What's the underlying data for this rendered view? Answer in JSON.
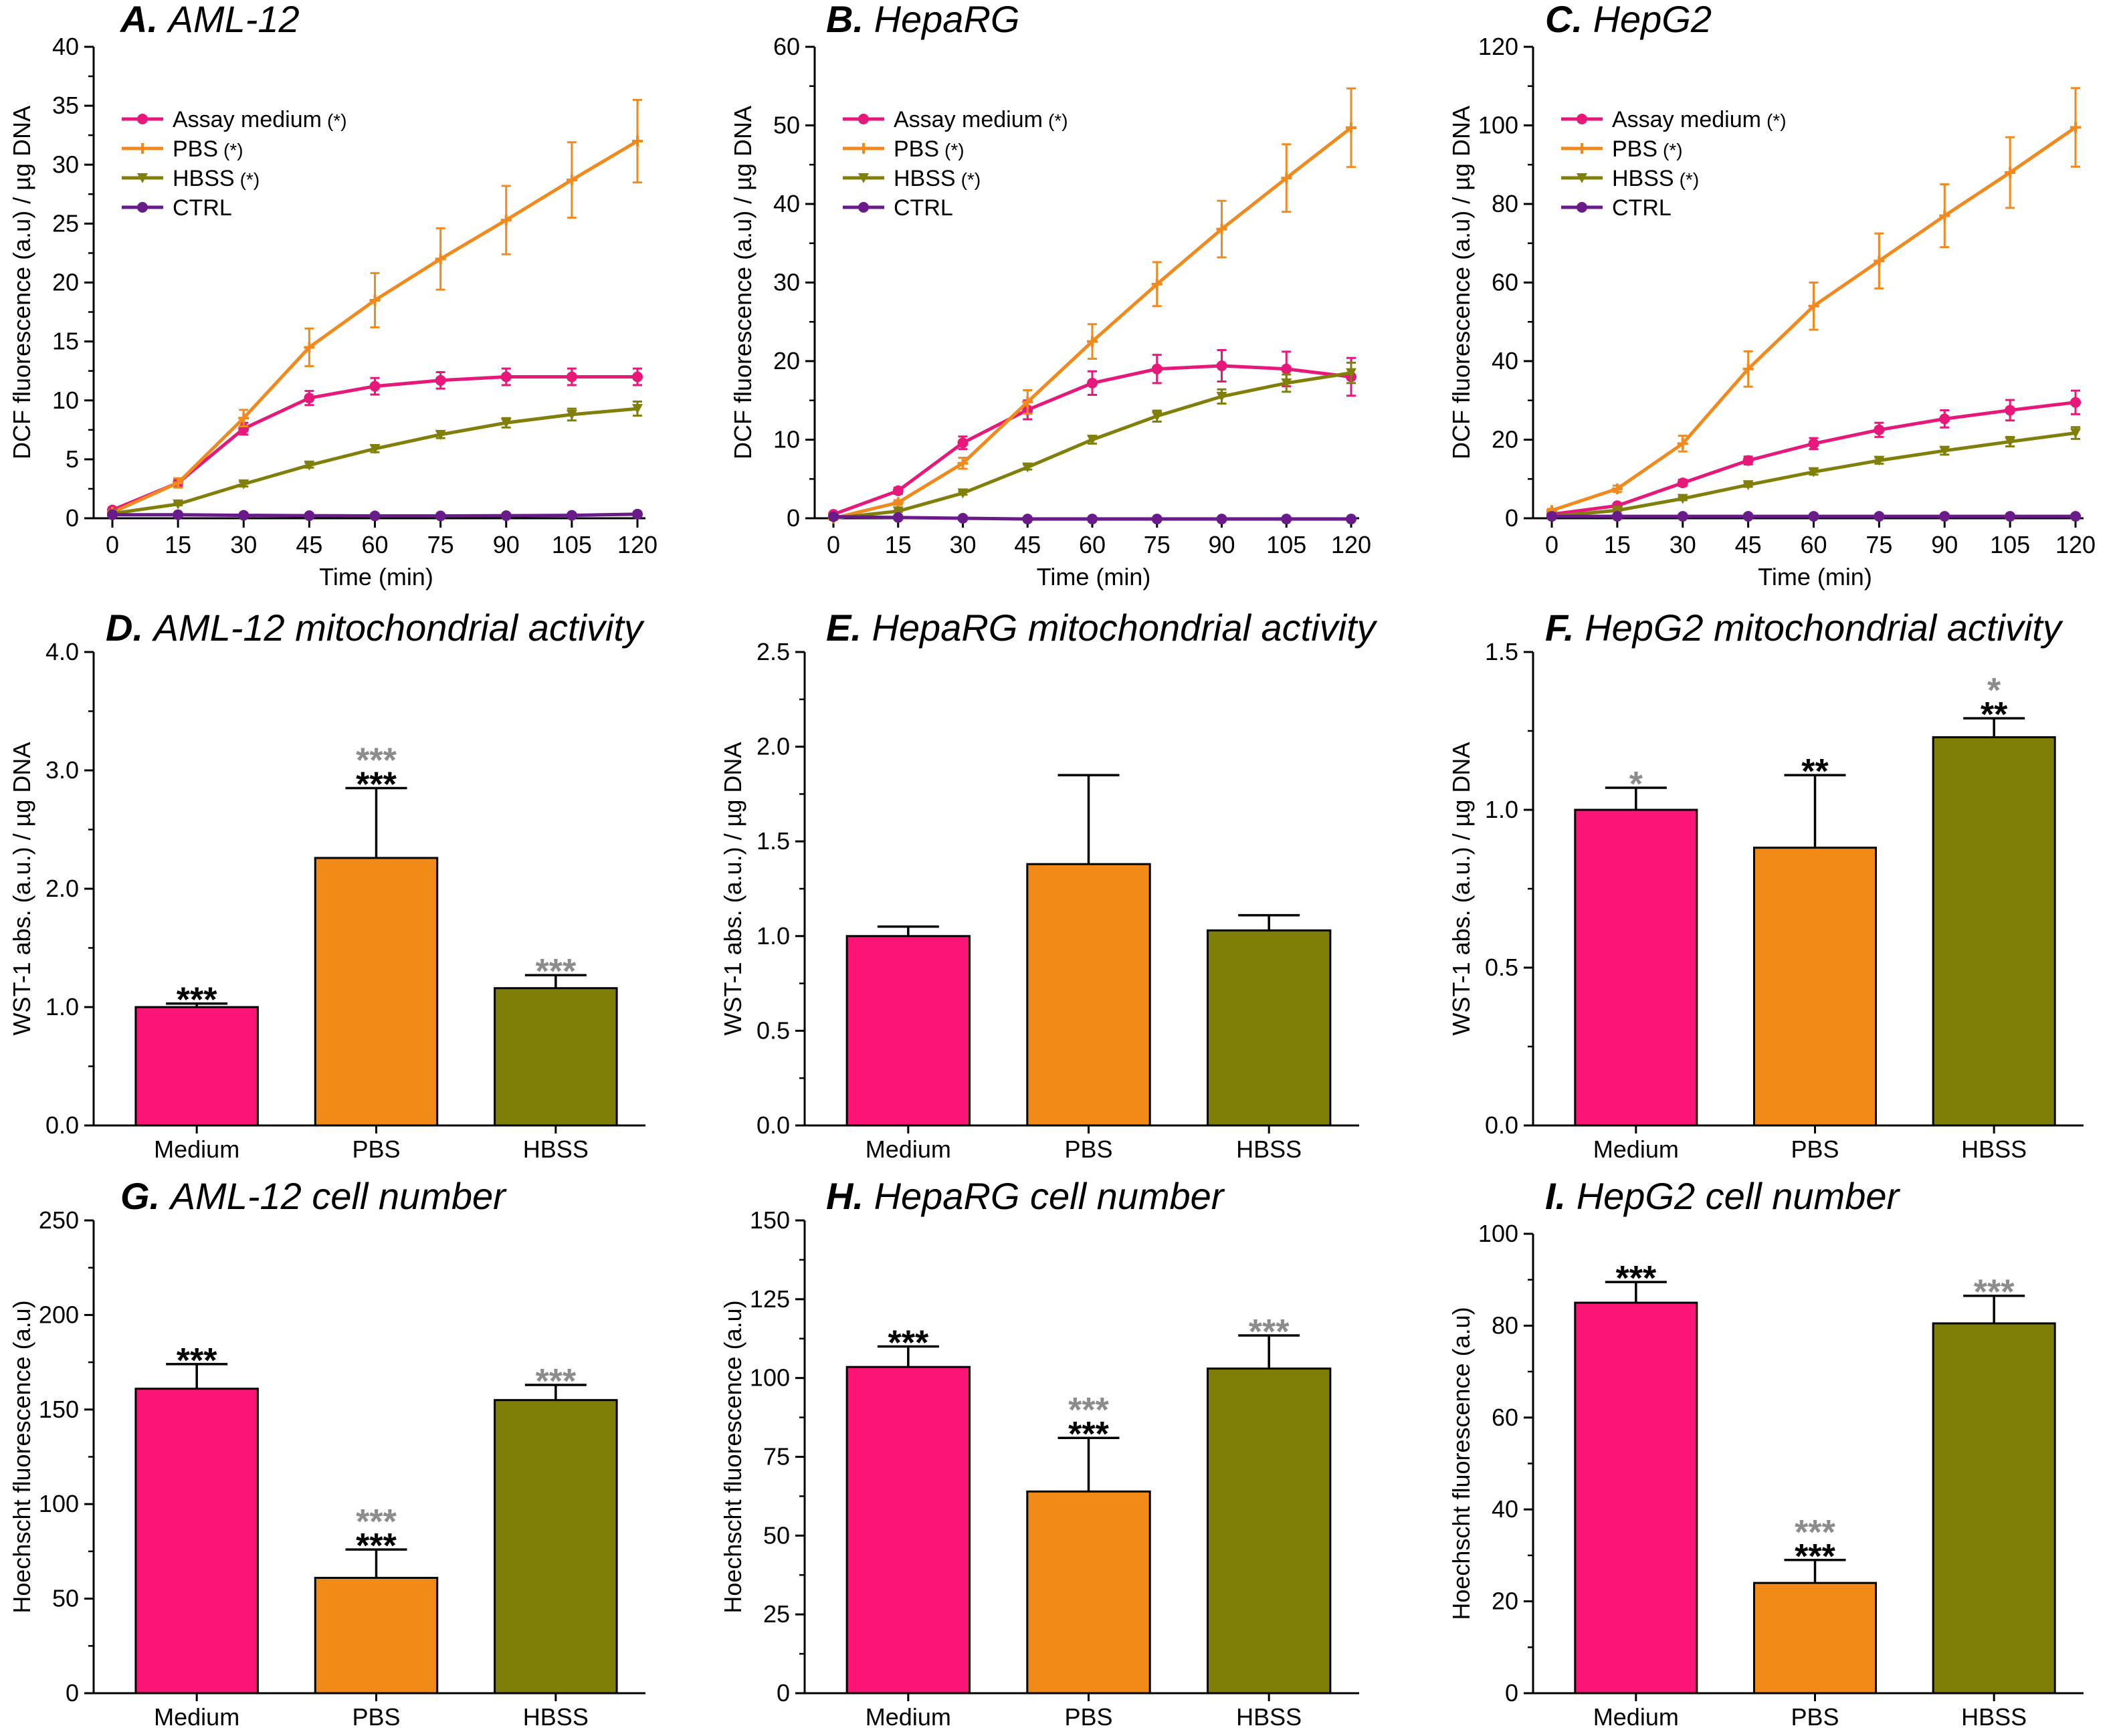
{
  "chart_data": [
    {
      "panel": "A",
      "type": "line",
      "title": "A. AML-12",
      "title_letter": "A.",
      "title_text": "AML-12",
      "xlabel": "Time (min)",
      "ylabel": "DCF fluorescence (a.u) / µg DNA",
      "x": [
        0,
        15,
        30,
        45,
        60,
        75,
        90,
        105,
        120
      ],
      "xticks": [
        "0",
        "15",
        "30",
        "45",
        "60",
        "75",
        "90",
        "105",
        "120"
      ],
      "ylim": [
        0,
        40
      ],
      "yticks": [
        "0",
        "5",
        "10",
        "15",
        "20",
        "25",
        "30",
        "35",
        "40"
      ],
      "series": [
        {
          "name": "Assay medium",
          "sig": "(*)",
          "color": "#e6197a",
          "marker": "circle",
          "values": [
            0.7,
            3.0,
            7.6,
            10.2,
            11.2,
            11.7,
            12.0,
            12.0,
            12.0
          ],
          "errors": [
            0.2,
            0.3,
            0.5,
            0.6,
            0.7,
            0.7,
            0.7,
            0.7,
            0.7
          ]
        },
        {
          "name": "PBS",
          "sig": "(*)",
          "color": "#f08a1e",
          "marker": "plus",
          "values": [
            0.5,
            3.0,
            8.5,
            14.5,
            18.5,
            22.0,
            25.3,
            28.7,
            32.0
          ],
          "errors": [
            0.2,
            0.4,
            0.7,
            1.6,
            2.3,
            2.6,
            2.9,
            3.2,
            3.5
          ]
        },
        {
          "name": "HBSS",
          "sig": "(*)",
          "color": "#7f7f0a",
          "marker": "triangle",
          "values": [
            0.4,
            1.2,
            2.9,
            4.5,
            5.9,
            7.1,
            8.1,
            8.8,
            9.3
          ],
          "errors": [
            0.1,
            0.1,
            0.2,
            0.2,
            0.3,
            0.3,
            0.4,
            0.5,
            0.6
          ]
        },
        {
          "name": "CTRL",
          "sig": "",
          "color": "#6a1b8a",
          "marker": "circle",
          "values": [
            0.3,
            0.3,
            0.25,
            0.22,
            0.2,
            0.2,
            0.22,
            0.25,
            0.35
          ],
          "errors": [
            0.05,
            0.05,
            0.05,
            0.05,
            0.05,
            0.05,
            0.05,
            0.05,
            0.05
          ]
        }
      ]
    },
    {
      "panel": "B",
      "type": "line",
      "title": "B. HepaRG",
      "title_letter": "B.",
      "title_text": "HepaRG",
      "xlabel": "Time (min)",
      "ylabel": "DCF fluorescence (a.u) / µg DNA",
      "x": [
        0,
        15,
        30,
        45,
        60,
        75,
        90,
        105,
        120
      ],
      "xticks": [
        "0",
        "15",
        "30",
        "45",
        "60",
        "75",
        "90",
        "105",
        "120"
      ],
      "ylim": [
        0,
        60
      ],
      "yticks": [
        "0",
        "10",
        "20",
        "30",
        "40",
        "50",
        "60"
      ],
      "series": [
        {
          "name": "Assay medium",
          "sig": "(*)",
          "color": "#e6197a",
          "marker": "circle",
          "values": [
            0.5,
            3.5,
            9.6,
            13.8,
            17.2,
            19.0,
            19.4,
            19.0,
            18.0
          ],
          "errors": [
            0.2,
            0.4,
            0.8,
            1.2,
            1.5,
            1.8,
            2.0,
            2.2,
            2.4
          ]
        },
        {
          "name": "PBS",
          "sig": "(*)",
          "color": "#f08a1e",
          "marker": "plus",
          "values": [
            0.0,
            2.0,
            7.0,
            14.8,
            22.5,
            29.8,
            36.8,
            43.3,
            49.7
          ],
          "errors": [
            0.2,
            0.3,
            0.7,
            1.5,
            2.2,
            2.8,
            3.6,
            4.3,
            5.0
          ]
        },
        {
          "name": "HBSS",
          "sig": "(*)",
          "color": "#7f7f0a",
          "marker": "triangle",
          "values": [
            0.0,
            0.9,
            3.2,
            6.5,
            10.0,
            13.0,
            15.5,
            17.2,
            18.5
          ],
          "errors": [
            0.1,
            0.1,
            0.2,
            0.3,
            0.5,
            0.7,
            0.9,
            1.1,
            1.3
          ]
        },
        {
          "name": "CTRL",
          "sig": "",
          "color": "#6a1b8a",
          "marker": "circle",
          "values": [
            0.2,
            0.1,
            0.0,
            -0.1,
            -0.1,
            -0.1,
            -0.1,
            -0.1,
            -0.1
          ],
          "errors": [
            0.05,
            0.05,
            0.05,
            0.05,
            0.05,
            0.05,
            0.05,
            0.05,
            0.05
          ]
        }
      ]
    },
    {
      "panel": "C",
      "type": "line",
      "title": "C. HepG2",
      "title_letter": "C.",
      "title_text": "HepG2",
      "xlabel": "Time (min)",
      "ylabel": "DCF fluorescence (a.u) / µg DNA",
      "x": [
        0,
        15,
        30,
        45,
        60,
        75,
        90,
        105,
        120
      ],
      "xticks": [
        "0",
        "15",
        "30",
        "45",
        "60",
        "75",
        "90",
        "105",
        "120"
      ],
      "ylim": [
        0,
        120
      ],
      "yticks": [
        "0",
        "20",
        "40",
        "60",
        "80",
        "100",
        "120"
      ],
      "series": [
        {
          "name": "Assay medium",
          "sig": "(*)",
          "color": "#e6197a",
          "marker": "circle",
          "values": [
            1.0,
            3.2,
            9.0,
            14.7,
            19.0,
            22.5,
            25.3,
            27.5,
            29.5
          ],
          "errors": [
            0.3,
            0.5,
            0.8,
            1.0,
            1.4,
            1.8,
            2.2,
            2.6,
            3.0
          ]
        },
        {
          "name": "PBS",
          "sig": "(*)",
          "color": "#f08a1e",
          "marker": "plus",
          "values": [
            2.0,
            7.5,
            19.0,
            38.0,
            54.0,
            65.5,
            77.0,
            88.0,
            99.5
          ],
          "errors": [
            0.4,
            0.8,
            2.0,
            4.5,
            6.0,
            7.0,
            8.0,
            9.0,
            10.0
          ]
        },
        {
          "name": "HBSS",
          "sig": "(*)",
          "color": "#7f7f0a",
          "marker": "triangle",
          "values": [
            0.5,
            2.0,
            5.0,
            8.5,
            11.8,
            14.7,
            17.2,
            19.5,
            21.7
          ],
          "errors": [
            0.2,
            0.2,
            0.4,
            0.5,
            0.7,
            0.8,
            1.0,
            1.2,
            1.5
          ]
        },
        {
          "name": "CTRL",
          "sig": "",
          "color": "#6a1b8a",
          "marker": "circle",
          "values": [
            0.5,
            0.5,
            0.5,
            0.5,
            0.5,
            0.5,
            0.5,
            0.5,
            0.5
          ],
          "errors": [
            0.1,
            0.1,
            0.1,
            0.1,
            0.1,
            0.1,
            0.1,
            0.1,
            0.1
          ]
        }
      ]
    },
    {
      "panel": "D",
      "type": "bar",
      "title": "D. AML-12 mitochondrial activity",
      "title_letter": "D.",
      "title_text": "AML-12 mitochondrial activity",
      "xlabel": "",
      "ylabel": "WST-1 abs. (a.u.) / µg DNA",
      "ylim": [
        0,
        4.0
      ],
      "yticks": [
        "0.0",
        "1.0",
        "2.0",
        "3.0",
        "4.0"
      ],
      "categories": [
        "Medium",
        "PBS",
        "HBSS"
      ],
      "values": [
        1.0,
        2.26,
        1.16
      ],
      "errors": [
        0.03,
        0.59,
        0.11
      ],
      "colors": [
        "#fc1476",
        "#f28a18",
        "#7f7f07"
      ],
      "stars_black": [
        "***",
        "***",
        ""
      ],
      "stars_grey": [
        "",
        "***",
        "***"
      ]
    },
    {
      "panel": "E",
      "type": "bar",
      "title": "E. HepaRG mitochondrial activity",
      "title_letter": "E.",
      "title_text": "HepaRG mitochondrial activity",
      "xlabel": "",
      "ylabel": "WST-1 abs. (a.u.) / µg DNA",
      "ylim": [
        0,
        2.5
      ],
      "yticks": [
        "0.0",
        "0.5",
        "1.0",
        "1.5",
        "2.0",
        "2.5"
      ],
      "categories": [
        "Medium",
        "PBS",
        "HBSS"
      ],
      "values": [
        1.0,
        1.38,
        1.03
      ],
      "errors": [
        0.05,
        0.47,
        0.08
      ],
      "colors": [
        "#fc1476",
        "#f28a18",
        "#7f7f07"
      ],
      "stars_black": [
        "",
        "",
        ""
      ],
      "stars_grey": [
        "",
        "",
        ""
      ]
    },
    {
      "panel": "F",
      "type": "bar",
      "title": "F. HepG2 mitochondrial activity",
      "title_letter": "F.",
      "title_text": "HepG2 mitochondrial activity",
      "xlabel": "",
      "ylabel": "WST-1 abs. (a.u.) / µg DNA",
      "ylim": [
        0,
        1.5
      ],
      "yticks": [
        "0.0",
        "0.5",
        "1.0",
        "1.5"
      ],
      "categories": [
        "Medium",
        "PBS",
        "HBSS"
      ],
      "values": [
        1.0,
        0.88,
        1.23
      ],
      "errors": [
        0.07,
        0.23,
        0.06
      ],
      "colors": [
        "#fc1476",
        "#f28a18",
        "#7f7f07"
      ],
      "stars_black": [
        "",
        "**",
        "**"
      ],
      "stars_grey": [
        "*",
        "",
        "*"
      ]
    },
    {
      "panel": "G",
      "type": "bar",
      "title": "G. AML-12 cell number",
      "title_letter": "G.",
      "title_text": "AML-12 cell number",
      "xlabel": "",
      "ylabel": "Hoechscht fluorescence (a.u)",
      "ylim": [
        0,
        250
      ],
      "yticks": [
        "0",
        "50",
        "100",
        "150",
        "200",
        "250"
      ],
      "categories": [
        "Medium",
        "PBS",
        "HBSS"
      ],
      "values": [
        161,
        61,
        155
      ],
      "errors": [
        13,
        15,
        8
      ],
      "colors": [
        "#fc1476",
        "#f28a18",
        "#7f7f07"
      ],
      "stars_black": [
        "***",
        "***",
        ""
      ],
      "stars_grey": [
        "",
        "***",
        "***"
      ]
    },
    {
      "panel": "H",
      "type": "bar",
      "title": "H. HepaRG cell number",
      "title_letter": "H.",
      "title_text": "HepaRG cell number",
      "xlabel": "",
      "ylabel": "Hoechscht fluorescence (a.u)",
      "ylim": [
        0,
        150
      ],
      "yticks": [
        "0",
        "25",
        "50",
        "75",
        "100",
        "125",
        "150"
      ],
      "categories": [
        "Medium",
        "PBS",
        "HBSS"
      ],
      "values": [
        103.5,
        64,
        103
      ],
      "errors": [
        6.5,
        17,
        10.5
      ],
      "colors": [
        "#fc1476",
        "#f28a18",
        "#7f7f07"
      ],
      "stars_black": [
        "***",
        "***",
        ""
      ],
      "stars_grey": [
        "",
        "***",
        "***"
      ]
    },
    {
      "panel": "I",
      "type": "bar",
      "title": "I. HepG2 cell number",
      "title_letter": "I.",
      "title_text": "HepG2 cell number",
      "xlabel": "",
      "ylabel": "Hoechscht fluorescence (a.u)",
      "ylim": [
        0,
        100
      ],
      "yticks": [
        "0",
        "20",
        "40",
        "60",
        "80",
        "100"
      ],
      "categories": [
        "Medium",
        "PBS",
        "HBSS"
      ],
      "values": [
        85,
        24,
        80.5
      ],
      "errors": [
        4.5,
        5,
        6
      ],
      "colors": [
        "#fc1476",
        "#f28a18",
        "#7f7f07"
      ],
      "stars_black": [
        "***",
        "***",
        ""
      ],
      "stars_grey": [
        "",
        "***",
        "***"
      ]
    }
  ]
}
